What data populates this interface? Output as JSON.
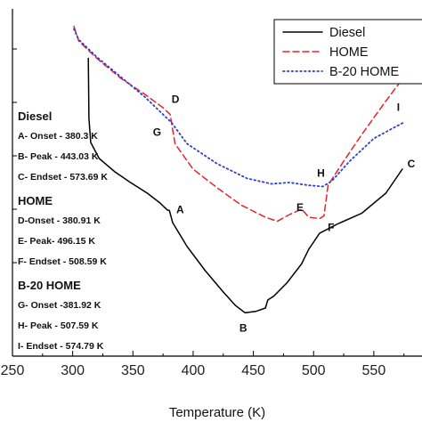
{
  "chart_data": {
    "type": "line",
    "xlabel": "Temperature (K)",
    "ylabel": "",
    "xlim": [
      250,
      590
    ],
    "x_ticks": [
      "250",
      "300",
      "350",
      "400",
      "450",
      "500",
      "550"
    ],
    "legend_position": "top-right",
    "series": [
      {
        "name": "Diesel",
        "color": "#000000",
        "style": "solid",
        "points": [
          [
            313,
            18.3
          ],
          [
            313.5,
            13.8
          ],
          [
            315,
            12.0
          ],
          [
            322,
            10.8
          ],
          [
            335,
            9.8
          ],
          [
            348,
            9.0
          ],
          [
            362,
            8.2
          ],
          [
            372,
            7.5
          ],
          [
            378.5,
            6.95
          ],
          [
            380.3,
            6.9
          ],
          [
            383,
            6.0
          ],
          [
            395,
            4.2
          ],
          [
            410,
            2.4
          ],
          [
            425,
            0.8
          ],
          [
            435,
            -0.2
          ],
          [
            443.03,
            -0.75
          ],
          [
            452,
            -0.65
          ],
          [
            460,
            -0.4
          ],
          [
            462,
            0.2
          ],
          [
            467,
            0.5
          ],
          [
            478,
            1.5
          ],
          [
            490,
            2.9
          ],
          [
            496,
            4.0
          ],
          [
            505,
            5.2
          ],
          [
            520,
            5.9
          ],
          [
            540,
            6.7
          ],
          [
            560,
            8.2
          ],
          [
            573.69,
            10.0
          ]
        ]
      },
      {
        "name": "HOME",
        "color": "#e8232b",
        "style": "dashed",
        "points": [
          [
            301,
            20.7
          ],
          [
            305,
            19.6
          ],
          [
            320,
            18.3
          ],
          [
            340,
            16.8
          ],
          [
            360,
            15.6
          ],
          [
            375,
            14.6
          ],
          [
            380.91,
            14.1
          ],
          [
            385,
            11.9
          ],
          [
            400,
            10.0
          ],
          [
            420,
            8.6
          ],
          [
            440,
            7.3
          ],
          [
            460,
            6.4
          ],
          [
            470,
            6.1
          ],
          [
            480,
            6.6
          ],
          [
            490,
            7.0
          ],
          [
            496.15,
            6.4
          ],
          [
            505,
            6.3
          ],
          [
            508.59,
            6.5
          ],
          [
            512,
            8.8
          ],
          [
            525,
            10.6
          ],
          [
            540,
            12.6
          ],
          [
            560,
            15.1
          ],
          [
            575,
            16.9
          ]
        ]
      },
      {
        "name": "B-20 HOME",
        "color": "#2c3fd8",
        "style": "dotted",
        "points": [
          [
            301,
            20.5
          ],
          [
            305,
            19.7
          ],
          [
            320,
            18.4
          ],
          [
            340,
            16.9
          ],
          [
            360,
            15.4
          ],
          [
            381.92,
            13.5
          ],
          [
            395,
            11.9
          ],
          [
            420,
            10.4
          ],
          [
            445,
            9.3
          ],
          [
            465,
            8.9
          ],
          [
            480,
            9.0
          ],
          [
            495,
            8.8
          ],
          [
            507.59,
            8.7
          ],
          [
            515,
            9.1
          ],
          [
            530,
            10.6
          ],
          [
            550,
            12.3
          ],
          [
            574.79,
            13.5
          ]
        ]
      }
    ],
    "points": [
      {
        "label": "A",
        "x": 380.3,
        "y": 6.9
      },
      {
        "label": "B",
        "x": 443.03,
        "y": -0.75
      },
      {
        "label": "C",
        "x": 573.69,
        "y": 10.0
      },
      {
        "label": "D",
        "x": 380.91,
        "y": 14.1
      },
      {
        "label": "E",
        "x": 496.15,
        "y": 6.4
      },
      {
        "label": "F",
        "x": 508.59,
        "y": 6.5
      },
      {
        "label": "G",
        "x": 381.92,
        "y": 13.5
      },
      {
        "label": "H",
        "x": 507.59,
        "y": 8.7
      },
      {
        "label": "I",
        "x": 574.79,
        "y": 13.5
      }
    ],
    "annotations": [
      {
        "heading": "Diesel",
        "lines": [
          "A- Onset - 380.3 K",
          "B- Peak - 443.03 K",
          "C- Endset - 573.69 K"
        ]
      },
      {
        "heading": "HOME",
        "lines": [
          "D-Onset - 380.91 K",
          "E- Peak- 496.15 K",
          "F- Endset - 508.59 K"
        ]
      },
      {
        "heading": "B-20 HOME",
        "lines": [
          "G- Onset -381.92 K",
          "H- Peak - 507.59 K",
          "I- Endset - 574.79 K"
        ]
      }
    ]
  }
}
